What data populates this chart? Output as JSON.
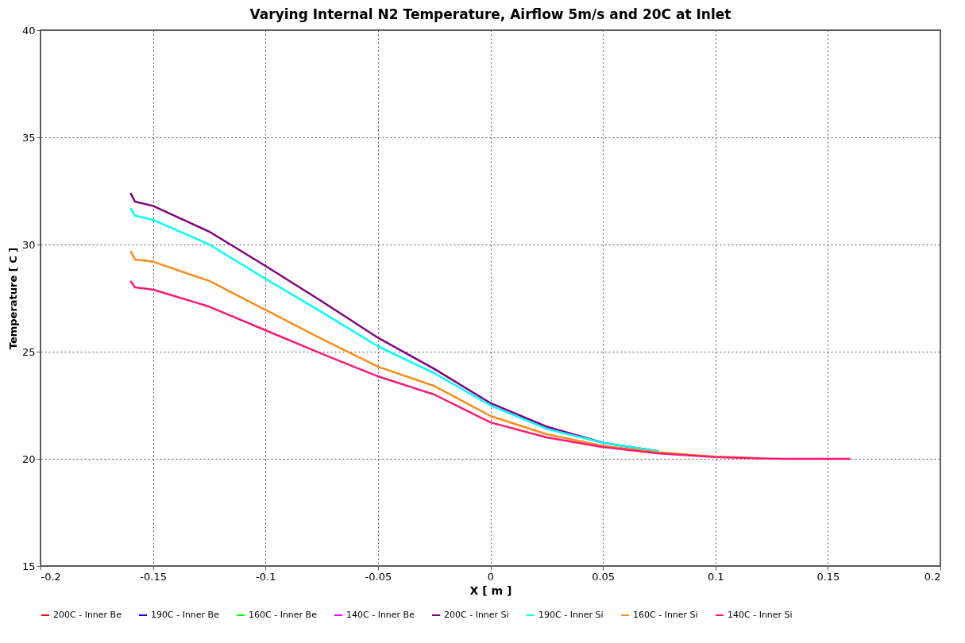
{
  "chart_data": {
    "type": "line",
    "title": "Varying Internal N2 Temperature, Airflow 5m/s and 20C at Inlet",
    "xlabel": "X [ m ]",
    "ylabel": "Temperature [ C ]",
    "x": [
      -0.16,
      -0.158,
      -0.15,
      -0.125,
      -0.1,
      -0.075,
      -0.05,
      -0.025,
      0,
      0.025,
      0.05,
      0.075,
      0.1,
      0.12,
      0.13,
      0.16
    ],
    "series": [
      {
        "name": "200C - Inner Be",
        "color": "#ff0000",
        "values": [
          null,
          null,
          null,
          null,
          null,
          null,
          null,
          null,
          null,
          null,
          null,
          null,
          null,
          null,
          null,
          null
        ]
      },
      {
        "name": "190C - Inner Be",
        "color": "#0000ff",
        "values": [
          null,
          null,
          null,
          null,
          null,
          null,
          null,
          null,
          null,
          null,
          null,
          null,
          null,
          null,
          null,
          null
        ]
      },
      {
        "name": "160C - Inner Be",
        "color": "#00ff00",
        "values": [
          null,
          null,
          null,
          null,
          null,
          null,
          null,
          null,
          null,
          null,
          null,
          null,
          null,
          null,
          null,
          null
        ]
      },
      {
        "name": "140C - Inner Be",
        "color": "#ff00ff",
        "values": [
          null,
          null,
          null,
          null,
          null,
          null,
          null,
          null,
          null,
          null,
          null,
          null,
          null,
          null,
          null,
          null
        ]
      },
      {
        "name": "200C - Inner Si",
        "color": "#800080",
        "values": [
          32.4,
          32.0,
          31.8,
          30.6,
          29.0,
          27.35,
          25.65,
          24.2,
          22.6,
          21.5,
          20.75,
          20.35,
          null,
          null,
          null,
          null
        ]
      },
      {
        "name": "190C - Inner Si",
        "color": "#00ffff",
        "values": [
          31.7,
          31.35,
          31.15,
          30.0,
          28.4,
          26.85,
          25.25,
          24.0,
          22.5,
          21.4,
          20.75,
          20.35,
          null,
          null,
          null,
          null
        ]
      },
      {
        "name": "160C - Inner Si",
        "color": "#ff8c1a",
        "values": [
          29.7,
          29.3,
          29.2,
          28.3,
          26.95,
          25.6,
          24.3,
          23.4,
          22.0,
          21.15,
          20.6,
          20.3,
          20.1,
          20.03,
          null,
          null
        ]
      },
      {
        "name": "140C - Inner Si",
        "color": "#ff1a75",
        "values": [
          28.3,
          28.0,
          27.9,
          27.1,
          26.0,
          24.9,
          23.85,
          23.0,
          21.7,
          21.0,
          20.55,
          20.25,
          20.08,
          20.02,
          20.0,
          20.0
        ]
      }
    ],
    "xlim": [
      -0.2,
      0.2
    ],
    "xticks": [
      -0.2,
      -0.15,
      -0.1,
      -0.05,
      0,
      0.05,
      0.1,
      0.15,
      0.2
    ],
    "ylim": [
      15,
      40
    ],
    "yticks": [
      15,
      20,
      25,
      30,
      35,
      40
    ],
    "grid": true,
    "legend": "bottom",
    "marker": "none",
    "line_style": "solid"
  }
}
